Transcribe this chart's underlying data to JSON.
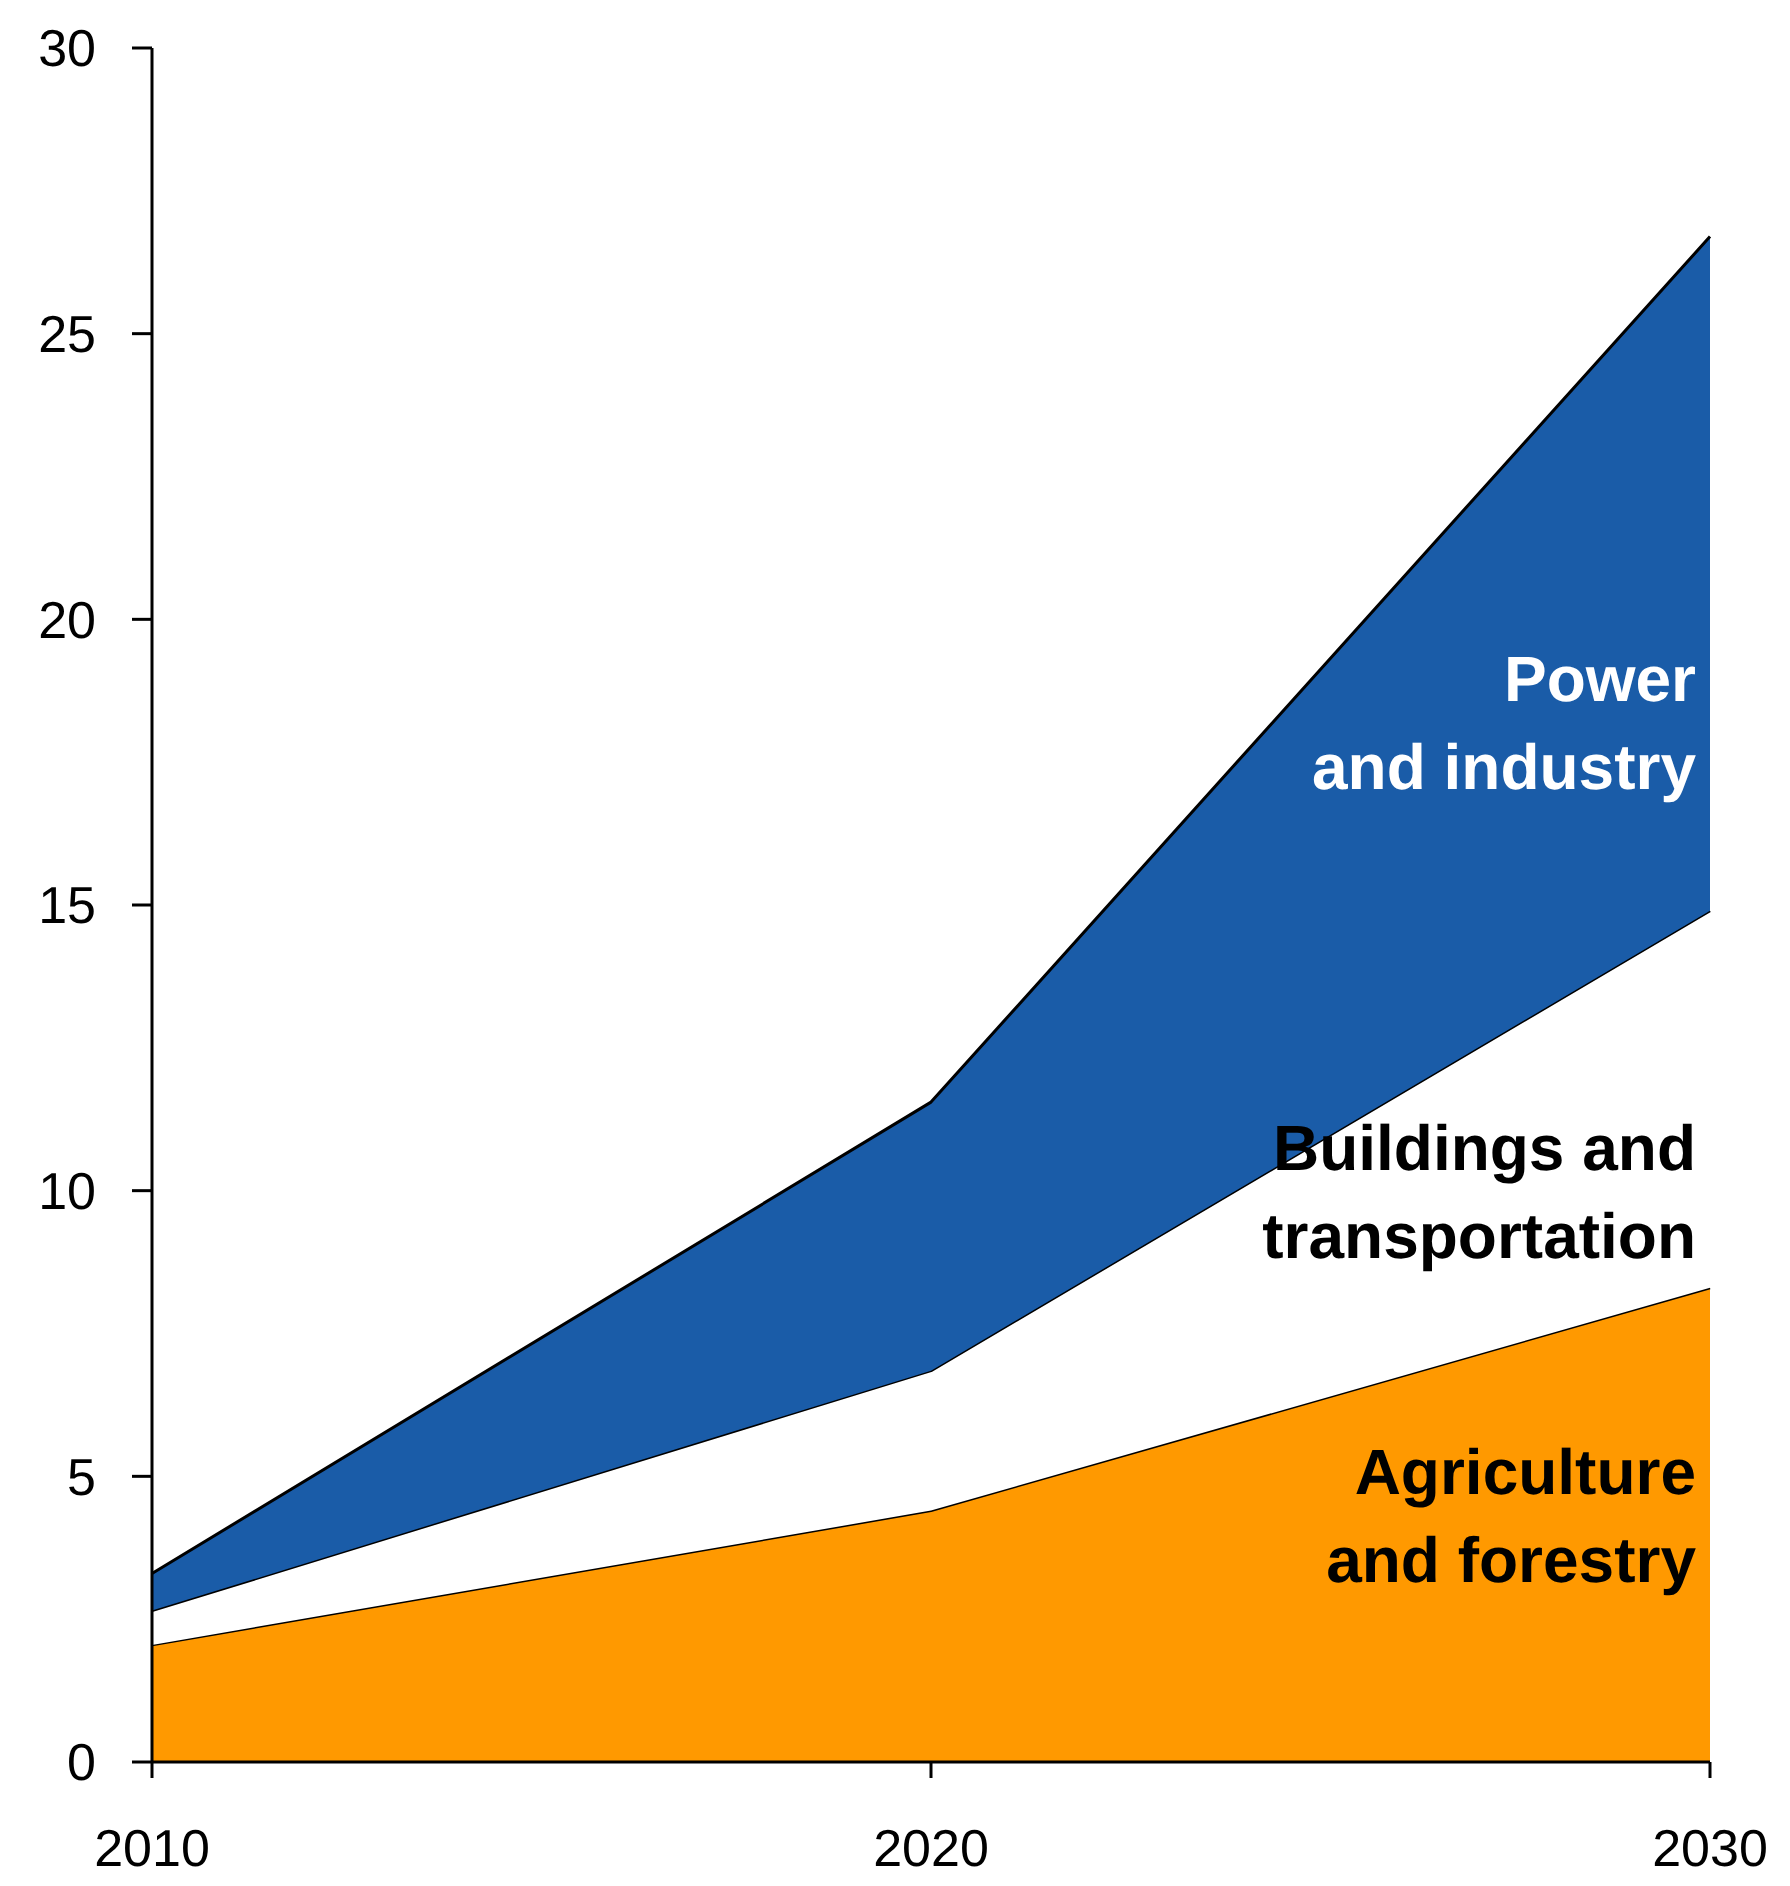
{
  "chart_data": {
    "type": "area",
    "stacked": true,
    "x": [
      2010,
      2020,
      2030
    ],
    "xlim": [
      2010,
      2030
    ],
    "xticks": [
      2010,
      2020,
      2030
    ],
    "ylim": [
      0,
      30
    ],
    "yticks": [
      0,
      5,
      10,
      15,
      20,
      25,
      30
    ],
    "grid": false,
    "series": [
      {
        "name": "Agriculture and forestry",
        "color": "#ff9900",
        "values": [
          2.05,
          4.4,
          8.3
        ]
      },
      {
        "name": "Buildings and transportation",
        "color": "#ffffff",
        "values": [
          0.6,
          2.45,
          6.6
        ]
      },
      {
        "name": "Power and industry",
        "color": "#1a5ca8",
        "values": [
          0.65,
          4.7,
          11.8
        ]
      }
    ]
  }
}
